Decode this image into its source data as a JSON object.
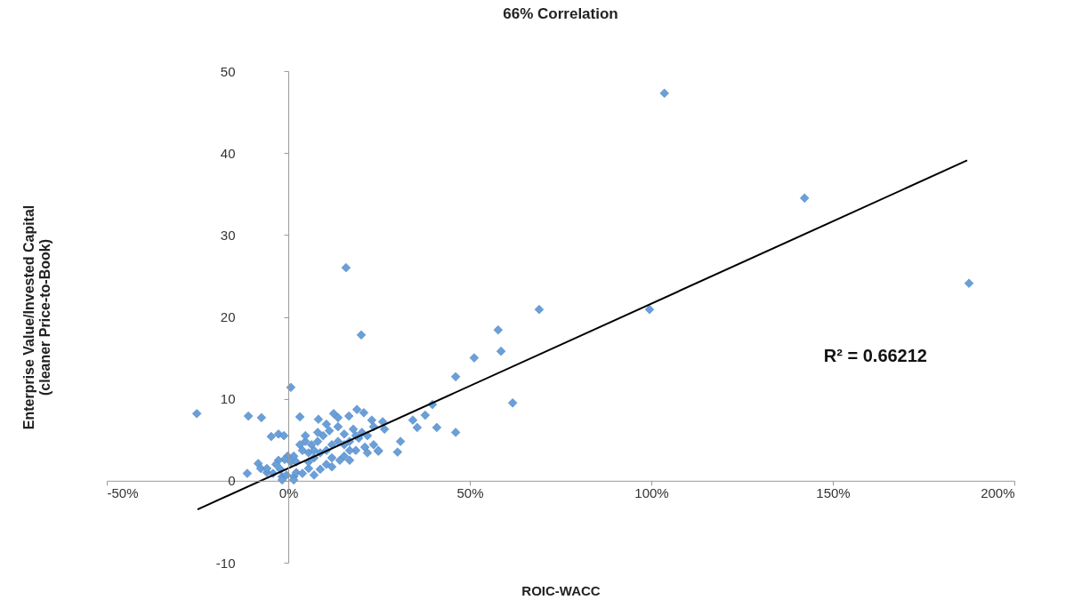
{
  "chart_data": {
    "type": "scatter",
    "title": "66% Correlation",
    "xlabel": "ROIC-WACC",
    "ylabel": "Enterprise Value/Invested Capital\n(cleaner Price-to-Book)",
    "xlim": [
      -50,
      200
    ],
    "ylim": [
      -10,
      50
    ],
    "xticks": [
      {
        "value": -50,
        "label": "-50%"
      },
      {
        "value": 0,
        "label": "0%"
      },
      {
        "value": 50,
        "label": "50%"
      },
      {
        "value": 100,
        "label": "100%"
      },
      {
        "value": 150,
        "label": "150%"
      },
      {
        "value": 200,
        "label": "200%"
      }
    ],
    "yticks": [
      -10,
      0,
      10,
      20,
      30,
      40,
      50
    ],
    "marker": "diamond",
    "annotations": [
      "R² = 0.66212"
    ],
    "series": [
      {
        "color": "#6a9fd8",
        "x": [
          103.6,
          142.2,
          187.5,
          99.5,
          15.9,
          20.1,
          0.7,
          69.1,
          57.8,
          58.6,
          51.2,
          46.1,
          61.8,
          39.7,
          37.7,
          34.3,
          35.5,
          40.9,
          46.1,
          30.9,
          30.1,
          26,
          26.5,
          24.8,
          -25.2,
          -11.0,
          -7.4,
          -4.7,
          -2.7,
          -1.2,
          -11.3,
          3.2,
          8.3,
          12.5,
          18.9,
          20.8,
          16.7,
          23.0,
          -8.3,
          -7.6,
          -5.9,
          -4.2,
          -2.2,
          -1.7,
          -0.5,
          1.5,
          2.2,
          3.9,
          5.6,
          7.1,
          8.8,
          10.5,
          12.0,
          14.2,
          15.4,
          16.9,
          18.6,
          21.1,
          21.8,
          23.5,
          24.8,
          19.4,
          20.3,
          17.9,
          15.4,
          13.7,
          11.3,
          9.6,
          8.1,
          6.4,
          4.7,
          3.2,
          3.9,
          5.6,
          1.5,
          -0.2,
          -1.0,
          -2.7,
          -3.4,
          0.7,
          2.2,
          7.1,
          8.8,
          10.5,
          12.0,
          13.7,
          15.4,
          16.9,
          18.6,
          21.8,
          23.5,
          13.7,
          10.5,
          8.1,
          4.7,
          7.1,
          5.6,
          12.0,
          16.9,
          -5.9,
          -1.7,
          1.5
        ],
        "values": [
          47.3,
          34.5,
          24.1,
          20.9,
          26.0,
          17.8,
          11.4,
          20.9,
          18.4,
          15.8,
          15.0,
          12.7,
          9.5,
          9.3,
          8.0,
          7.4,
          6.5,
          6.5,
          5.9,
          4.8,
          3.5,
          7.2,
          6.3,
          3.6,
          8.2,
          7.9,
          7.7,
          5.4,
          5.7,
          5.5,
          0.9,
          7.8,
          7.5,
          8.2,
          8.7,
          8.3,
          7.9,
          7.4,
          2.1,
          1.5,
          1.0,
          0.9,
          1.4,
          0.5,
          0.7,
          0.5,
          1.0,
          0.9,
          1.5,
          0.7,
          1.4,
          2.0,
          1.7,
          2.5,
          3.0,
          2.5,
          3.7,
          4.1,
          3.4,
          4.4,
          3.7,
          5.2,
          5.9,
          6.3,
          5.7,
          6.6,
          6.1,
          5.5,
          4.8,
          4.4,
          4.8,
          4.4,
          3.7,
          3.4,
          3.0,
          3.0,
          2.6,
          2.5,
          2.0,
          2.3,
          2.3,
          2.8,
          3.4,
          3.7,
          4.4,
          4.8,
          4.4,
          4.8,
          5.5,
          5.5,
          6.6,
          7.7,
          6.9,
          5.9,
          5.5,
          3.7,
          2.3,
          2.8,
          3.7,
          1.5,
          0.1,
          0.1
        ]
      },
      {
        "type": "line",
        "marker": "none",
        "color": "#000000",
        "x": [
          -25,
          187
        ],
        "values": [
          -3.5,
          39.1
        ]
      }
    ]
  }
}
